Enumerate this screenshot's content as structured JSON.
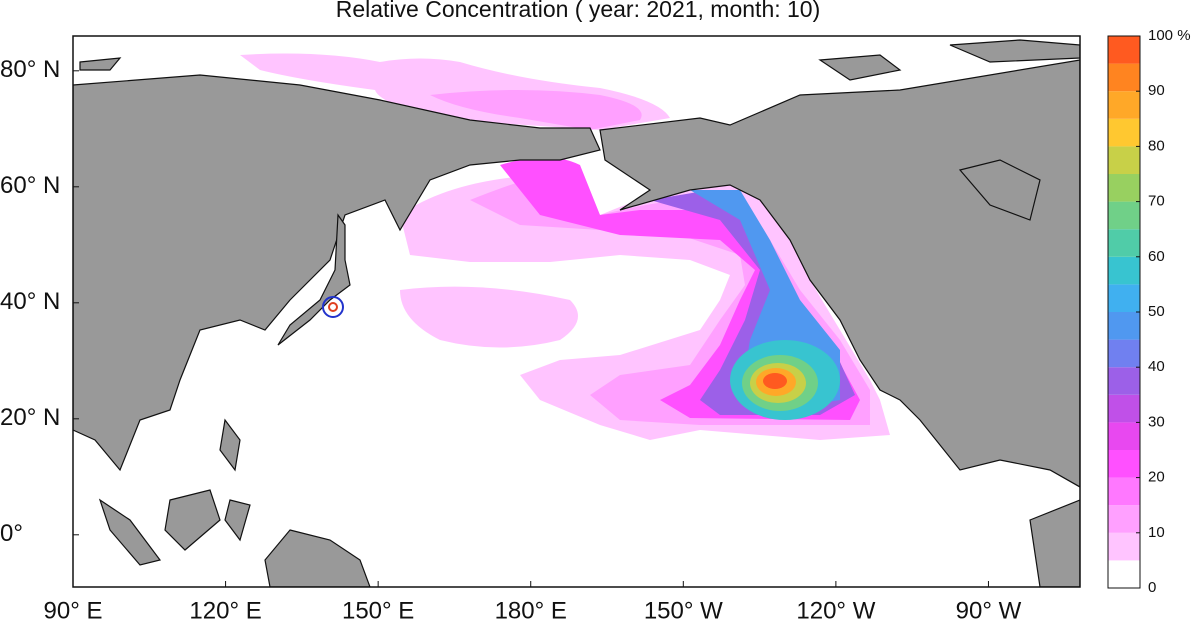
{
  "map": {
    "title": "Relative Concentration ( year: 2021, month: 10)",
    "lon_range": [
      90,
      288
    ],
    "lat_range": [
      -9,
      86
    ],
    "lon_ticks": [
      {
        "value": 90,
        "label": "90° E"
      },
      {
        "value": 120,
        "label": "120° E"
      },
      {
        "value": 150,
        "label": "150° E"
      },
      {
        "value": 180,
        "label": "180° E"
      },
      {
        "value": 210,
        "label": "150° W"
      },
      {
        "value": 240,
        "label": "120° W"
      },
      {
        "value": 270,
        "label": "90° W"
      }
    ],
    "lat_ticks": [
      {
        "value": 80,
        "label": "80° N"
      },
      {
        "value": 60,
        "label": "60° N"
      },
      {
        "value": 40,
        "label": "40° N"
      },
      {
        "value": 20,
        "label": "20° N"
      },
      {
        "value": 0,
        "label": "0°"
      }
    ],
    "colorbar": {
      "range": [
        0,
        100
      ],
      "ticks": [
        0,
        10,
        20,
        30,
        40,
        50,
        60,
        70,
        80,
        90,
        {
          "value": 100,
          "label": "100 %"
        }
      ],
      "colors": [
        "#ffffff",
        "#ffc4ff",
        "#ffa0ff",
        "#ff78ff",
        "#ff50ff",
        "#e848f0",
        "#c050e8",
        "#9c60e8",
        "#7080f0",
        "#5098f0",
        "#40b0f0",
        "#38c4d0",
        "#50cca8",
        "#70d088",
        "#98d060",
        "#c8d048",
        "#ffc830",
        "#ffa828",
        "#ff8420",
        "#ff5a20"
      ]
    }
  }
}
